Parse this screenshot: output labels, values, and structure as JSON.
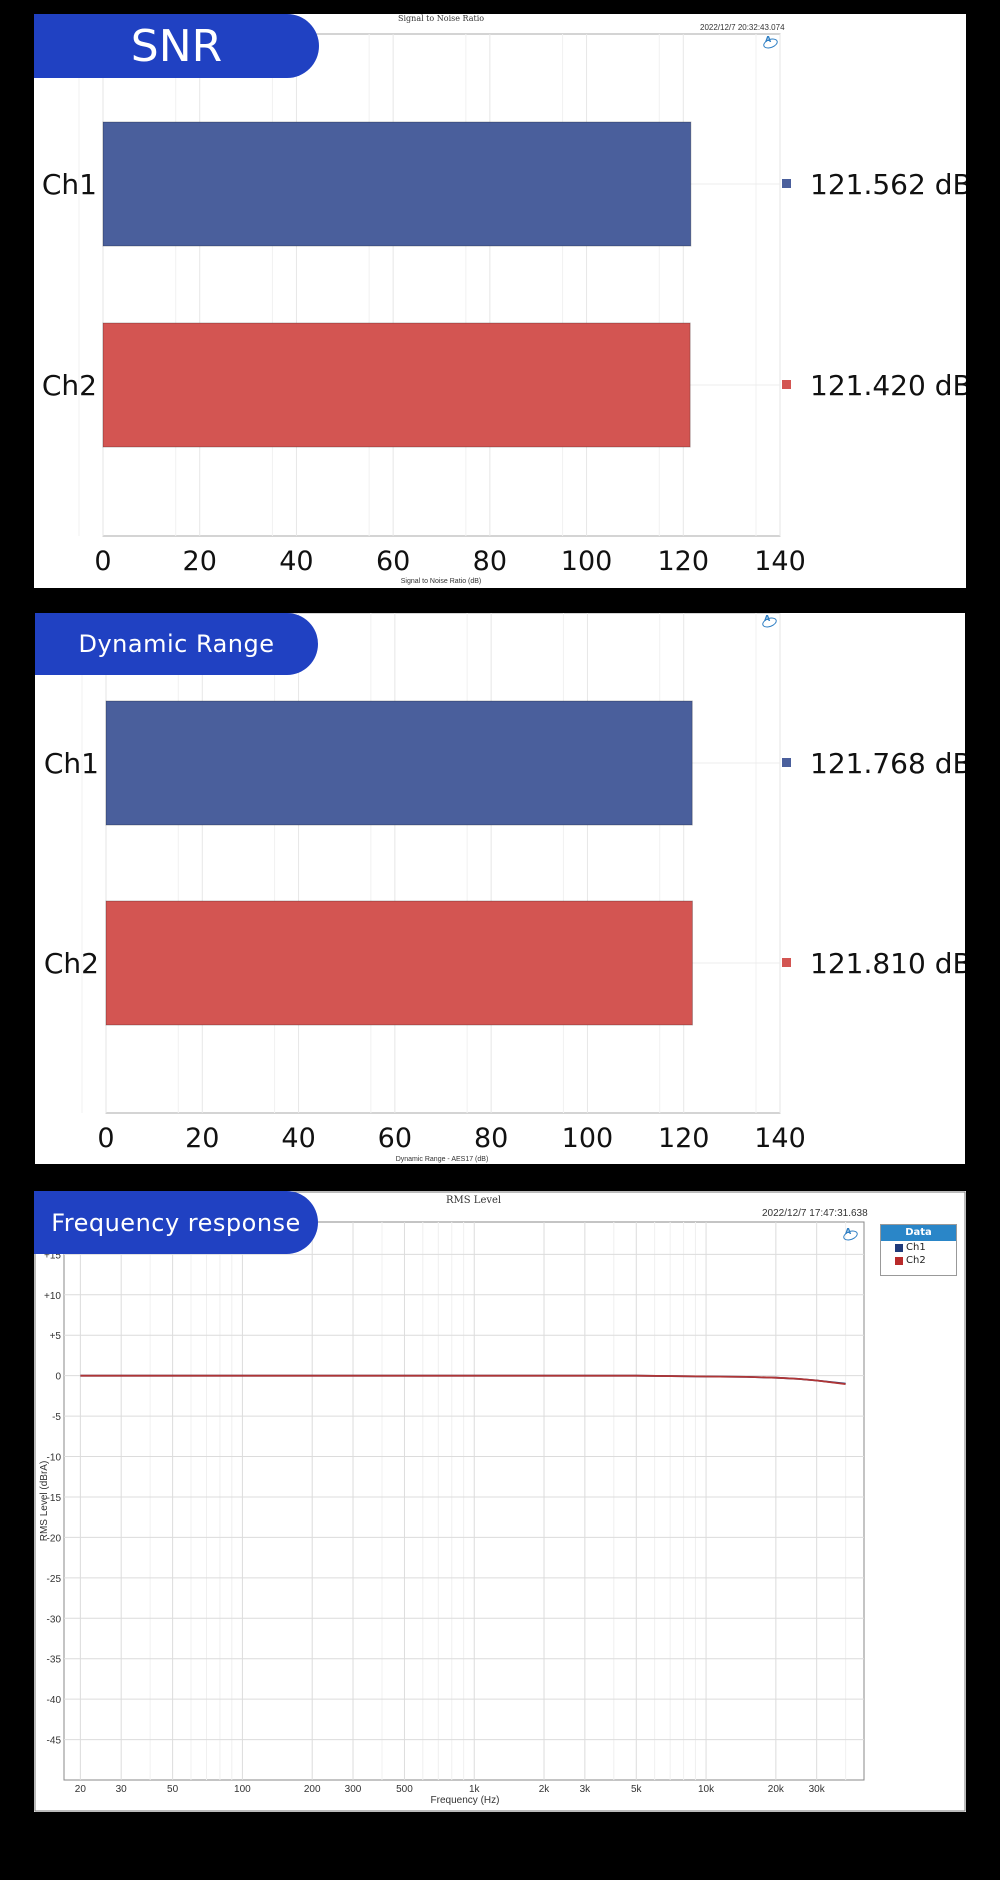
{
  "panels": {
    "snr": {
      "tab_label": "SNR",
      "header_title": "Signal to Noise Ratio",
      "timestamp": "2022/12/7 20:32:43.074"
    },
    "dr": {
      "tab_label": "Dynamic Range"
    },
    "fr": {
      "tab_label": "Frequency response",
      "header_title": "RMS Level",
      "timestamp": "2022/12/7 17:47:31.638",
      "legend": {
        "title": "Data",
        "items": [
          "Ch1",
          "Ch2"
        ]
      }
    }
  },
  "colors": {
    "ch1": "#4a5f9c",
    "ch2": "#d35552",
    "tab": "#2041c2",
    "legend_header": "#2a86c8"
  },
  "chart_data": [
    {
      "type": "bar",
      "orientation": "horizontal",
      "title": "Signal to Noise Ratio",
      "categories": [
        "Ch1",
        "Ch2"
      ],
      "values": [
        121.562,
        121.42
      ],
      "value_labels": [
        "121.562 dB",
        "121.420 dB"
      ],
      "xlabel": "Signal to Noise Ratio (dB)",
      "xlim": [
        0,
        140
      ],
      "xticks": [
        0,
        20,
        40,
        60,
        80,
        100,
        120,
        140
      ],
      "grid": true
    },
    {
      "type": "bar",
      "orientation": "horizontal",
      "title": "",
      "categories": [
        "Ch1",
        "Ch2"
      ],
      "values": [
        121.768,
        121.81
      ],
      "value_labels": [
        "121.768 dB",
        "121.810 dB"
      ],
      "xlabel": "Dynamic Range - AES17 (dB)",
      "xlim": [
        0,
        140
      ],
      "xticks": [
        0,
        20,
        40,
        60,
        80,
        100,
        120,
        140
      ],
      "grid": true
    },
    {
      "type": "line",
      "title": "RMS Level",
      "xlabel": "Frequency (Hz)",
      "ylabel": "RMS Level (dBrA)",
      "xscale": "log",
      "xlim": [
        17,
        48000
      ],
      "ylim": [
        -50,
        19
      ],
      "xticks": [
        20,
        30,
        50,
        100,
        200,
        300,
        500,
        1000,
        2000,
        3000,
        5000,
        10000,
        20000,
        30000
      ],
      "xtick_labels": [
        "20",
        "30",
        "50",
        "100",
        "200",
        "300",
        "500",
        "1k",
        "2k",
        "3k",
        "5k",
        "10k",
        "20k",
        "30k"
      ],
      "yticks": [
        15,
        10,
        5,
        0,
        -5,
        -10,
        -15,
        -20,
        -25,
        -30,
        -35,
        -40,
        -45
      ],
      "ytick_labels": [
        "+15",
        "+10",
        "+5",
        "0",
        "-5",
        "-10",
        "-15",
        "-20",
        "-25",
        "-30",
        "-35",
        "-40",
        "-45"
      ],
      "grid": true,
      "legend": "top-right",
      "series": [
        {
          "name": "Ch1",
          "x": [
            20,
            30,
            50,
            100,
            200,
            500,
            1000,
            2000,
            5000,
            10000,
            15000,
            20000,
            25000,
            30000,
            40000
          ],
          "y": [
            0,
            0,
            0,
            0,
            0,
            0,
            0,
            0,
            0,
            -0.1,
            -0.15,
            -0.25,
            -0.4,
            -0.6,
            -1.0
          ]
        },
        {
          "name": "Ch2",
          "x": [
            20,
            30,
            50,
            100,
            200,
            500,
            1000,
            2000,
            5000,
            10000,
            15000,
            20000,
            25000,
            30000,
            40000
          ],
          "y": [
            0,
            0,
            0,
            0,
            0,
            0,
            0,
            0,
            0,
            -0.1,
            -0.15,
            -0.25,
            -0.4,
            -0.6,
            -1.05
          ]
        }
      ]
    }
  ]
}
